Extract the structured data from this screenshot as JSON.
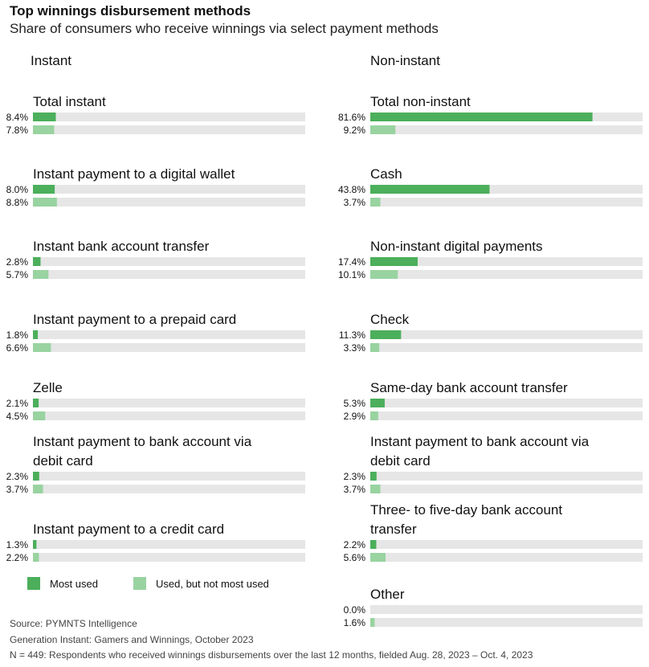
{
  "title": "Top winnings disbursement methods",
  "subtitle": "Share of consumers who receive winnings via select payment methods",
  "colors": {
    "most_used": "#4caf5b",
    "used_not_most": "#98d3a0",
    "track": "#e6e6e6"
  },
  "legend": {
    "most_used": "Most used",
    "used_not_most": "Used, but not most used"
  },
  "chart_data": [
    {
      "type": "bar",
      "title": "Instant",
      "xlim": [
        0,
        100
      ],
      "series_names": [
        "Most used",
        "Used, but not most used"
      ],
      "categories": [
        {
          "label": "Total instant",
          "values": [
            8.4,
            7.8
          ],
          "labels": [
            "8.4%",
            "7.8%"
          ]
        },
        {
          "label": "Instant payment to a digital wallet",
          "values": [
            8.0,
            8.8
          ],
          "labels": [
            "8.0%",
            "8.8%"
          ]
        },
        {
          "label": "Instant bank account transfer",
          "values": [
            2.8,
            5.7
          ],
          "labels": [
            "2.8%",
            "5.7%"
          ]
        },
        {
          "label": "Instant payment to a prepaid card",
          "values": [
            1.8,
            6.6
          ],
          "labels": [
            "1.8%",
            "6.6%"
          ]
        },
        {
          "label": "Zelle",
          "values": [
            2.1,
            4.5
          ],
          "labels": [
            "2.1%",
            "4.5%"
          ]
        },
        {
          "label": "Instant payment to bank account via debit card",
          "values": [
            2.3,
            3.7
          ],
          "labels": [
            "2.3%",
            "3.7%"
          ]
        },
        {
          "label": "Instant payment to a credit card",
          "values": [
            1.3,
            2.2
          ],
          "labels": [
            "1.3%",
            "2.2%"
          ]
        }
      ]
    },
    {
      "type": "bar",
      "title": "Non-instant",
      "xlim": [
        0,
        100
      ],
      "series_names": [
        "Most used",
        "Used, but not most used"
      ],
      "categories": [
        {
          "label": "Total non-instant",
          "values": [
            81.6,
            9.2
          ],
          "labels": [
            "81.6%",
            "9.2%"
          ]
        },
        {
          "label": "Cash",
          "values": [
            43.8,
            3.7
          ],
          "labels": [
            "43.8%",
            "3.7%"
          ]
        },
        {
          "label": "Non-instant digital payments",
          "values": [
            17.4,
            10.1
          ],
          "labels": [
            "17.4%",
            "10.1%"
          ]
        },
        {
          "label": "Check",
          "values": [
            11.3,
            3.3
          ],
          "labels": [
            "11.3%",
            "3.3%"
          ]
        },
        {
          "label": "Same-day bank account transfer",
          "values": [
            5.3,
            2.9
          ],
          "labels": [
            "5.3%",
            "2.9%"
          ]
        },
        {
          "label": "Instant payment to bank account via debit card",
          "values": [
            2.3,
            3.7
          ],
          "labels": [
            "2.3%",
            "3.7%"
          ]
        },
        {
          "label": "Three- to five-day bank account transfer",
          "values": [
            2.2,
            5.6
          ],
          "labels": [
            "2.2%",
            "5.6%"
          ]
        },
        {
          "label": "Other",
          "values": [
            0.0,
            1.6
          ],
          "labels": [
            "0.0%",
            "1.6%"
          ]
        }
      ]
    }
  ],
  "footer": {
    "source": "Source: PYMNTS Intelligence",
    "report": "Generation Instant: Gamers and Winnings, October 2023",
    "note": "N = 449: Respondents who received winnings disbursements over the last 12 months, fielded Aug. 28, 2023 – Oct. 4, 2023"
  }
}
